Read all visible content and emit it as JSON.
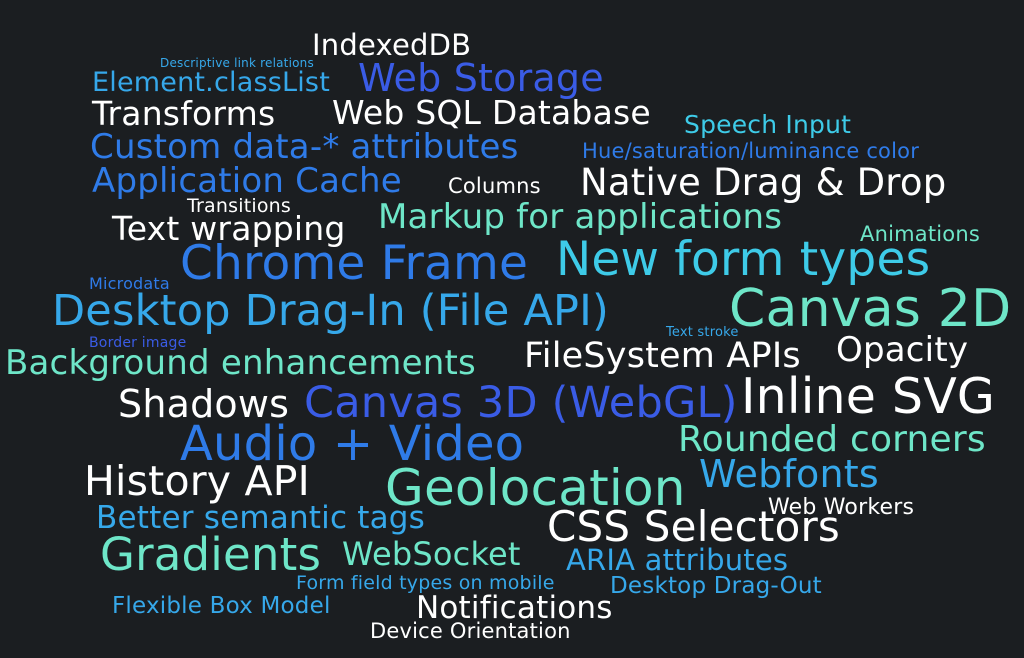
{
  "palette": {
    "background": "#1b1e21",
    "white": "#ffffff",
    "cyan": "#3ecbe8",
    "sky": "#36a8ea",
    "blue": "#2f7be8",
    "royal": "#3a5ce6",
    "mint": "#6ee6c8"
  },
  "words": [
    {
      "id": "w1",
      "text": "IndexedDB",
      "color": "white"
    },
    {
      "id": "w2",
      "text": "Descriptive link relations",
      "color": "sky"
    },
    {
      "id": "w3",
      "text": "Element.classList",
      "color": "sky"
    },
    {
      "id": "w4",
      "text": "Web Storage",
      "color": "royal"
    },
    {
      "id": "w5",
      "text": "Transforms",
      "color": "white"
    },
    {
      "id": "w6",
      "text": "Web SQL Database",
      "color": "white"
    },
    {
      "id": "w7",
      "text": "Speech Input",
      "color": "cyan"
    },
    {
      "id": "w8",
      "text": "Custom data-* attributes",
      "color": "blue"
    },
    {
      "id": "w9",
      "text": "Hue/saturation/luminance color",
      "color": "blue"
    },
    {
      "id": "w10",
      "text": "Application Cache",
      "color": "blue"
    },
    {
      "id": "w11",
      "text": "Columns",
      "color": "white"
    },
    {
      "id": "w12",
      "text": "Native Drag & Drop",
      "color": "white"
    },
    {
      "id": "w13",
      "text": "Transitions",
      "color": "white"
    },
    {
      "id": "w14",
      "text": "Markup for applications",
      "color": "mint"
    },
    {
      "id": "w15",
      "text": "Text wrapping",
      "color": "white"
    },
    {
      "id": "w16",
      "text": "Animations",
      "color": "mint"
    },
    {
      "id": "w17",
      "text": "Chrome Frame",
      "color": "blue"
    },
    {
      "id": "w18",
      "text": "New form types",
      "color": "cyan"
    },
    {
      "id": "w19",
      "text": "Microdata",
      "color": "blue"
    },
    {
      "id": "w20",
      "text": "Desktop Drag-In (File API)",
      "color": "sky"
    },
    {
      "id": "w21",
      "text": "Canvas 2D",
      "color": "mint"
    },
    {
      "id": "w22",
      "text": "Text stroke",
      "color": "sky"
    },
    {
      "id": "w23",
      "text": "Border image",
      "color": "royal"
    },
    {
      "id": "w24",
      "text": "Background enhancements",
      "color": "mint"
    },
    {
      "id": "w25",
      "text": "FileSystem APIs",
      "color": "white"
    },
    {
      "id": "w26",
      "text": "Opacity",
      "color": "white"
    },
    {
      "id": "w27",
      "text": "Shadows",
      "color": "white"
    },
    {
      "id": "w28",
      "text": "Canvas 3D (WebGL)",
      "color": "royal"
    },
    {
      "id": "w29",
      "text": "Inline SVG",
      "color": "white"
    },
    {
      "id": "w30",
      "text": "Audio + Video",
      "color": "blue"
    },
    {
      "id": "w31",
      "text": "Rounded corners",
      "color": "mint"
    },
    {
      "id": "w32",
      "text": "History API",
      "color": "white"
    },
    {
      "id": "w33",
      "text": "Geolocation",
      "color": "mint"
    },
    {
      "id": "w34",
      "text": "Webfonts",
      "color": "sky"
    },
    {
      "id": "w35",
      "text": "Web Workers",
      "color": "white"
    },
    {
      "id": "w36",
      "text": "Better semantic tags",
      "color": "sky"
    },
    {
      "id": "w37",
      "text": "CSS Selectors",
      "color": "white"
    },
    {
      "id": "w38",
      "text": "Gradients",
      "color": "mint"
    },
    {
      "id": "w39",
      "text": "WebSocket",
      "color": "mint"
    },
    {
      "id": "w40",
      "text": "ARIA attributes",
      "color": "sky"
    },
    {
      "id": "w41",
      "text": "Form field types on mobile",
      "color": "sky"
    },
    {
      "id": "w42",
      "text": "Desktop Drag-Out",
      "color": "sky"
    },
    {
      "id": "w43",
      "text": "Flexible Box Model",
      "color": "sky"
    },
    {
      "id": "w44",
      "text": "Notifications",
      "color": "white"
    },
    {
      "id": "w45",
      "text": "Device Orientation",
      "color": "white"
    }
  ]
}
